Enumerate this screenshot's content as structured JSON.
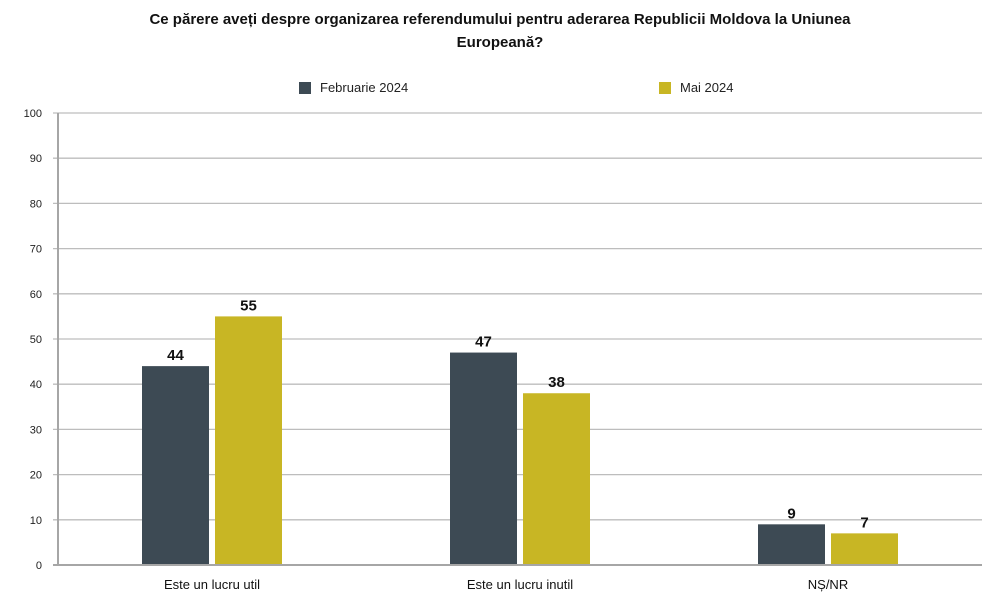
{
  "chart_data": {
    "type": "bar",
    "title": "Ce părere aveți despre organizarea referendumului pentru aderarea Republicii Moldova la Uniunea Europeană?",
    "title_lines": [
      "Ce părere aveți despre organizarea referendumului pentru aderarea Republicii Moldova la Uniunea",
      "Europeană?"
    ],
    "categories": [
      "Este un lucru util",
      "Este un lucru inutil",
      "NȘ/NR"
    ],
    "series": [
      {
        "name": "Februarie 2024",
        "color": "#3d4a54",
        "values": [
          44,
          47,
          9
        ]
      },
      {
        "name": "Mai 2024",
        "color": "#c8b624",
        "values": [
          55,
          38,
          7
        ]
      }
    ],
    "ylim": [
      0,
      100
    ],
    "yticks": [
      "0",
      "10",
      "20",
      "30",
      "40",
      "50",
      "60",
      "70",
      "80",
      "90",
      "100"
    ],
    "xlabel": "",
    "ylabel": "",
    "grid": true,
    "legend_position": "top"
  }
}
